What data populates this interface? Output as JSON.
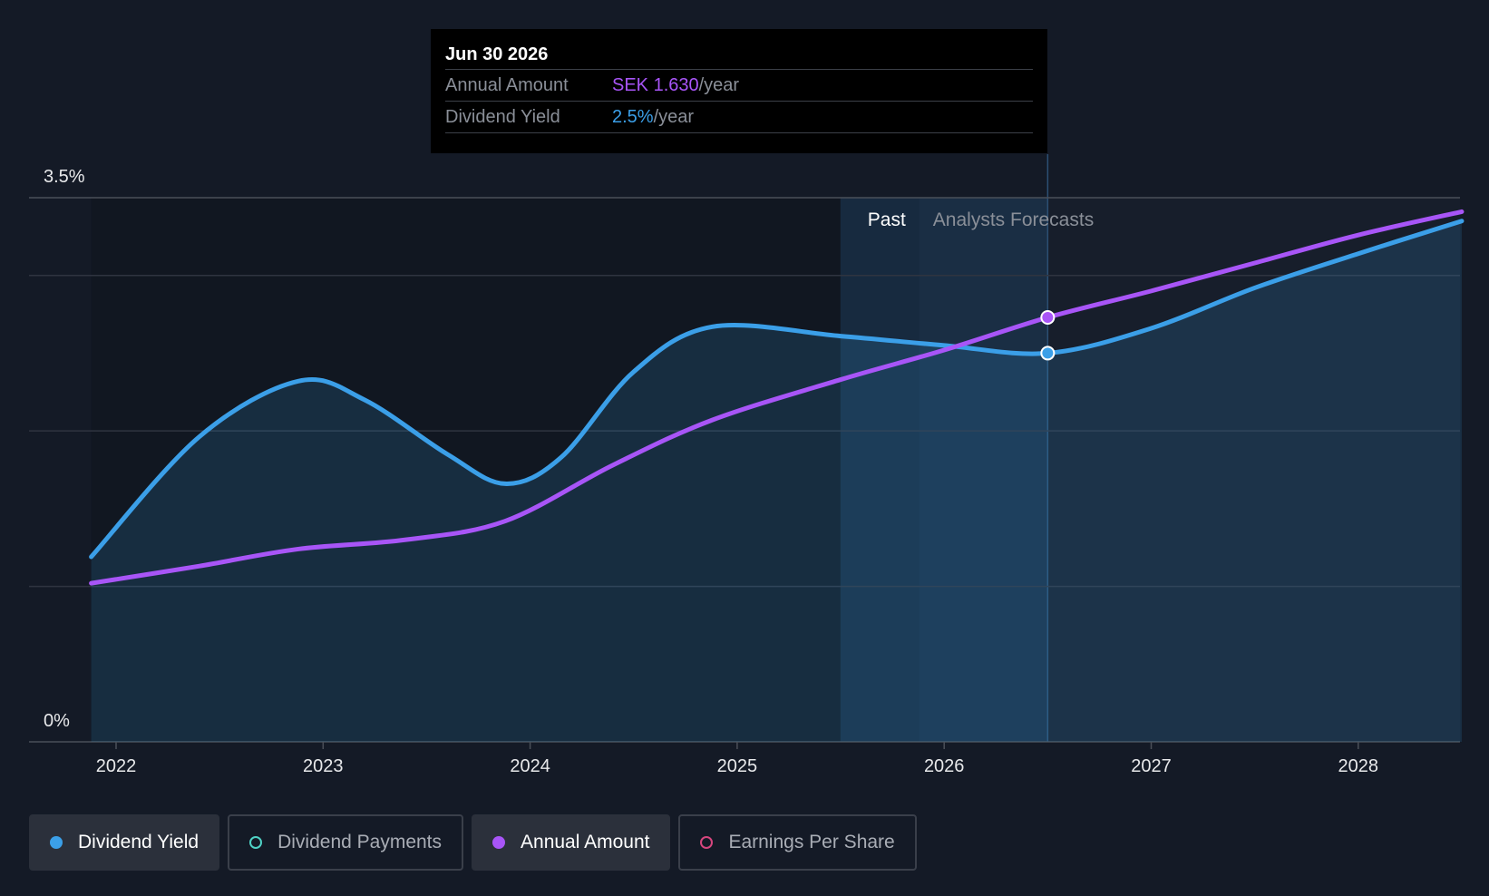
{
  "tooltip": {
    "date": "Jun 30 2026",
    "rows": [
      {
        "label": "Annual Amount",
        "value": "SEK 1.630",
        "unit": "/year",
        "color": "#a855f7"
      },
      {
        "label": "Dividend Yield",
        "value": "2.5%",
        "unit": "/year",
        "color": "#3b9fe8"
      }
    ]
  },
  "legend": [
    {
      "label": "Dividend Yield",
      "color": "#3b9fe8",
      "active": true,
      "filled": true
    },
    {
      "label": "Dividend Payments",
      "color": "#4fd1c5",
      "active": false,
      "filled": false
    },
    {
      "label": "Annual Amount",
      "color": "#a855f7",
      "active": true,
      "filled": true
    },
    {
      "label": "Earnings Per Share",
      "color": "#d6467e",
      "active": false,
      "filled": false
    }
  ],
  "chart_data": {
    "type": "line",
    "y_axis_labels": [
      "3.5%",
      "0%"
    ],
    "ylim": [
      0,
      3.5
    ],
    "xlim": [
      2021.6,
      2028.5
    ],
    "x_ticks": [
      2022,
      2023,
      2024,
      2025,
      2026,
      2027,
      2028
    ],
    "region_labels": {
      "past": "Past",
      "forecast": "Analysts Forecasts"
    },
    "past_forecast_split": 2025.88,
    "highlight_x": 2026.5,
    "series": [
      {
        "name": "Dividend Yield",
        "color": "#3b9fe8",
        "area": true,
        "points": [
          [
            2021.88,
            1.19
          ],
          [
            2022.4,
            1.96
          ],
          [
            2022.88,
            2.32
          ],
          [
            2023.2,
            2.2
          ],
          [
            2023.6,
            1.85
          ],
          [
            2023.88,
            1.66
          ],
          [
            2024.15,
            1.83
          ],
          [
            2024.5,
            2.38
          ],
          [
            2024.88,
            2.67
          ],
          [
            2025.5,
            2.61
          ],
          [
            2026.0,
            2.55
          ],
          [
            2026.5,
            2.5
          ],
          [
            2027.0,
            2.66
          ],
          [
            2027.5,
            2.92
          ],
          [
            2028.0,
            3.14
          ],
          [
            2028.5,
            3.35
          ]
        ]
      },
      {
        "name": "Annual Amount",
        "color": "#a855f7",
        "area": false,
        "points": [
          [
            2021.88,
            1.02
          ],
          [
            2022.4,
            1.13
          ],
          [
            2022.88,
            1.24
          ],
          [
            2023.4,
            1.3
          ],
          [
            2023.88,
            1.42
          ],
          [
            2024.4,
            1.78
          ],
          [
            2024.88,
            2.07
          ],
          [
            2025.5,
            2.33
          ],
          [
            2026.0,
            2.52
          ],
          [
            2026.5,
            2.73
          ],
          [
            2027.0,
            2.9
          ],
          [
            2027.5,
            3.08
          ],
          [
            2028.0,
            3.26
          ],
          [
            2028.5,
            3.41
          ]
        ]
      }
    ]
  }
}
